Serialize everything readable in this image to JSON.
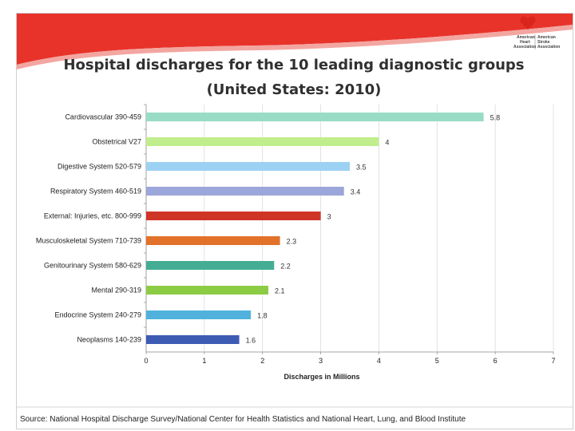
{
  "slide": {
    "logo_left": [
      "American",
      "Heart",
      "Association"
    ],
    "logo_right": [
      "American",
      "Stroke",
      "Association"
    ]
  },
  "chart_data": {
    "type": "bar",
    "orientation": "horizontal",
    "title": "Hospital discharges for the 10 leading diagnostic groups",
    "subtitle": "(United States: 2010)",
    "xlabel": "Discharges in Millions",
    "ylabel": "",
    "xlim": [
      0,
      7
    ],
    "xticks": [
      "0",
      "1",
      "2",
      "3",
      "4",
      "5",
      "6",
      "7"
    ],
    "grid": true,
    "categories": [
      "Cardiovascular 390-459",
      "Obstetrical V27",
      "Digestive System 520-579",
      "Respiratory System 460-519",
      "External: Injuries, etc. 800-999",
      "Musculoskeletal System 710-739",
      "Genitourinary System 580-629",
      "Mental 290-319",
      "Endocrine System 240-279",
      "Neoplasms 140-239"
    ],
    "values": [
      5.8,
      4,
      3.5,
      3.4,
      3,
      2.3,
      2.2,
      2.1,
      1.8,
      1.6
    ],
    "value_labels": [
      "5.8",
      "4",
      "3.5",
      "3.4",
      "3",
      "2.3",
      "2.2",
      "2.1",
      "1.8",
      "1.6"
    ],
    "colors": [
      "#99dcc5",
      "#c1ee8c",
      "#9dd1f4",
      "#9ba6da",
      "#cf3526",
      "#e2712a",
      "#44ad94",
      "#8ccc45",
      "#50b2dc",
      "#3e5bb4"
    ]
  },
  "source": "Source: National Hospital Discharge Survey/National Center for Health Statistics and National Heart, Lung, and Blood Institute"
}
